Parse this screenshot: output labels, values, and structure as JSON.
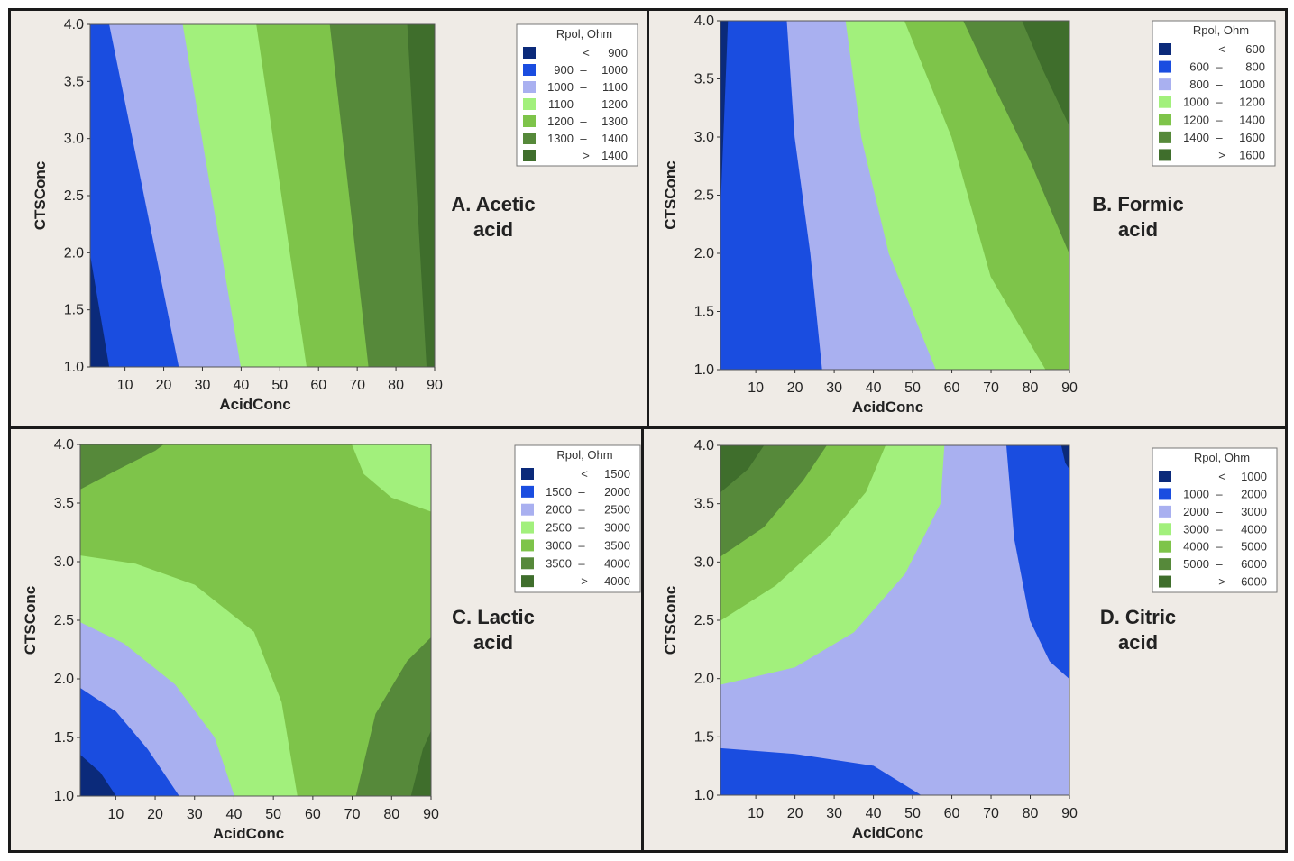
{
  "figure": "Rpol contour plots of CTSConc vs AcidConc",
  "colors": {
    "level1": "#0b2a7a",
    "level2": "#1a4de0",
    "level3": "#a9b0f0",
    "level4": "#a2f07c",
    "level5": "#7ec44a",
    "level6": "#56893a",
    "level7": "#3f6e2c",
    "frame_bg": "#efebe6",
    "border": "#1a1a1a"
  },
  "chart_data": [
    {
      "id": "A",
      "type": "contour",
      "title_line1": "A. Acetic",
      "title_line2": "acid",
      "xlabel": "AcidConc",
      "ylabel": "CTSConc",
      "xlim": [
        1,
        90
      ],
      "ylim": [
        1.0,
        4.0
      ],
      "xticks": [
        "10",
        "20",
        "30",
        "40",
        "50",
        "60",
        "70",
        "80",
        "90"
      ],
      "yticks": [
        "1.0",
        "1.5",
        "2.0",
        "2.5",
        "3.0",
        "3.5",
        "4.0"
      ],
      "legend_title": "Rpol, Ohm",
      "legend": [
        {
          "lo": "<",
          "hi": "900"
        },
        {
          "lo": "900",
          "hi": "1000"
        },
        {
          "lo": "1000",
          "hi": "1100"
        },
        {
          "lo": "1100",
          "hi": "1200"
        },
        {
          "lo": "1200",
          "hi": "1300"
        },
        {
          "lo": "1300",
          "hi": "1400"
        },
        {
          "lo": ">",
          "hi": "1400"
        }
      ],
      "regions": [
        {
          "level": 1,
          "outline": [
            [
              1,
              1
            ],
            [
              1,
              4
            ],
            [
              90,
              4
            ],
            [
              90,
              1
            ]
          ]
        },
        {
          "level": 2,
          "outline": [
            [
              6,
              1
            ],
            [
              1,
              2
            ],
            [
              1,
              4
            ],
            [
              90,
              4
            ],
            [
              90,
              1
            ]
          ]
        },
        {
          "level": 3,
          "outline": [
            [
              24,
              1
            ],
            [
              6,
              4
            ],
            [
              90,
              4
            ],
            [
              90,
              1
            ]
          ]
        },
        {
          "level": 4,
          "outline": [
            [
              40,
              1
            ],
            [
              25,
              4
            ],
            [
              90,
              4
            ],
            [
              90,
              1
            ]
          ]
        },
        {
          "level": 5,
          "outline": [
            [
              57,
              1
            ],
            [
              44,
              4
            ],
            [
              90,
              4
            ],
            [
              90,
              1
            ]
          ]
        },
        {
          "level": 6,
          "outline": [
            [
              73,
              1
            ],
            [
              63,
              4
            ],
            [
              90,
              4
            ],
            [
              90,
              1
            ]
          ]
        },
        {
          "level": 7,
          "outline": [
            [
              88,
              1
            ],
            [
              83,
              4
            ],
            [
              90,
              4
            ],
            [
              90,
              1
            ]
          ]
        }
      ]
    },
    {
      "id": "B",
      "type": "contour",
      "title_line1": "B. Formic",
      "title_line2": "acid",
      "xlabel": "AcidConc",
      "ylabel": "CTSConc",
      "xlim": [
        1,
        90
      ],
      "ylim": [
        1.0,
        4.0
      ],
      "xticks": [
        "10",
        "20",
        "30",
        "40",
        "50",
        "60",
        "70",
        "80",
        "90"
      ],
      "yticks": [
        "1.0",
        "1.5",
        "2.0",
        "2.5",
        "3.0",
        "3.5",
        "4.0"
      ],
      "legend_title": "Rpol, Ohm",
      "legend": [
        {
          "lo": "<",
          "hi": "600"
        },
        {
          "lo": "600",
          "hi": "800"
        },
        {
          "lo": "800",
          "hi": "1000"
        },
        {
          "lo": "1000",
          "hi": "1200"
        },
        {
          "lo": "1200",
          "hi": "1400"
        },
        {
          "lo": "1400",
          "hi": "1600"
        },
        {
          "lo": ">",
          "hi": "1600"
        }
      ],
      "regions": [
        {
          "level": 1,
          "outline": [
            [
              1,
              1
            ],
            [
              1,
              4
            ],
            [
              90,
              4
            ],
            [
              90,
              1
            ]
          ]
        },
        {
          "level": 2,
          "outline": [
            [
              1,
              2.3
            ],
            [
              3,
              4
            ],
            [
              90,
              4
            ],
            [
              90,
              1
            ],
            [
              1,
              1
            ]
          ]
        },
        {
          "level": 3,
          "outline": [
            [
              27,
              1
            ],
            [
              24,
              2
            ],
            [
              20,
              3
            ],
            [
              18,
              4
            ],
            [
              90,
              4
            ],
            [
              90,
              1
            ]
          ]
        },
        {
          "level": 4,
          "outline": [
            [
              56,
              1
            ],
            [
              44,
              2
            ],
            [
              37,
              3
            ],
            [
              33,
              4
            ],
            [
              90,
              4
            ],
            [
              90,
              1
            ]
          ]
        },
        {
          "level": 5,
          "outline": [
            [
              84,
              1
            ],
            [
              70,
              1.8
            ],
            [
              60,
              3
            ],
            [
              48,
              4
            ],
            [
              90,
              4
            ],
            [
              90,
              1
            ]
          ]
        },
        {
          "level": 6,
          "outline": [
            [
              90,
              2
            ],
            [
              80,
              2.8
            ],
            [
              70,
              3.5
            ],
            [
              63,
              4
            ],
            [
              90,
              4
            ]
          ]
        },
        {
          "level": 7,
          "outline": [
            [
              90,
              3.1
            ],
            [
              83,
              3.6
            ],
            [
              78,
              4
            ],
            [
              90,
              4
            ]
          ]
        }
      ]
    },
    {
      "id": "C",
      "type": "contour",
      "title_line1": "C. Lactic",
      "title_line2": "acid",
      "xlabel": "AcidConc",
      "ylabel": "CTSConc",
      "xlim": [
        1,
        90
      ],
      "ylim": [
        1.0,
        4.0
      ],
      "xticks": [
        "10",
        "20",
        "30",
        "40",
        "50",
        "60",
        "70",
        "80",
        "90"
      ],
      "yticks": [
        "1.0",
        "1.5",
        "2.0",
        "2.5",
        "3.0",
        "3.5",
        "4.0"
      ],
      "legend_title": "Rpol, Ohm",
      "legend": [
        {
          "lo": "<",
          "hi": "1500"
        },
        {
          "lo": "1500",
          "hi": "2000"
        },
        {
          "lo": "2000",
          "hi": "2500"
        },
        {
          "lo": "2500",
          "hi": "3000"
        },
        {
          "lo": "3000",
          "hi": "3500"
        },
        {
          "lo": "3500",
          "hi": "4000"
        },
        {
          "lo": ">",
          "hi": "4000"
        }
      ],
      "regions": [
        {
          "level": 5,
          "outline": [
            [
              1,
              1
            ],
            [
              1,
              4
            ],
            [
              90,
              4
            ],
            [
              90,
              1
            ]
          ]
        },
        {
          "level": 6,
          "outline": [
            [
              1,
              3.62
            ],
            [
              10,
              3.78
            ],
            [
              20,
              3.95
            ],
            [
              22,
              4
            ],
            [
              1,
              4
            ]
          ]
        },
        {
          "level": 4,
          "outline": [
            [
              70,
              4
            ],
            [
              73,
              3.75
            ],
            [
              80,
              3.55
            ],
            [
              90,
              3.43
            ],
            [
              90,
              4
            ]
          ]
        },
        {
          "level": 6,
          "outline": [
            [
              71,
              1
            ],
            [
              76,
              1.7
            ],
            [
              84,
              2.15
            ],
            [
              90,
              2.35
            ],
            [
              90,
              1
            ]
          ]
        },
        {
          "level": 7,
          "outline": [
            [
              85,
              1
            ],
            [
              88,
              1.4
            ],
            [
              90,
              1.55
            ],
            [
              90,
              1
            ]
          ]
        },
        {
          "level": 4,
          "outline": [
            [
              1,
              3.05
            ],
            [
              15,
              2.98
            ],
            [
              30,
              2.8
            ],
            [
              45,
              2.4
            ],
            [
              52,
              1.8
            ],
            [
              56,
              1
            ],
            [
              1,
              1
            ]
          ]
        },
        {
          "level": 3,
          "outline": [
            [
              1,
              2.48
            ],
            [
              12,
              2.3
            ],
            [
              25,
              1.95
            ],
            [
              35,
              1.5
            ],
            [
              40,
              1
            ],
            [
              1,
              1
            ]
          ]
        },
        {
          "level": 2,
          "outline": [
            [
              1,
              1.92
            ],
            [
              10,
              1.72
            ],
            [
              18,
              1.4
            ],
            [
              26,
              1
            ],
            [
              1,
              1
            ]
          ]
        },
        {
          "level": 1,
          "outline": [
            [
              1,
              1.35
            ],
            [
              6,
              1.2
            ],
            [
              10,
              1
            ],
            [
              1,
              1
            ]
          ]
        }
      ]
    },
    {
      "id": "D",
      "type": "contour",
      "title_line1": "D. Citric",
      "title_line2": "acid",
      "xlabel": "AcidConc",
      "ylabel": "CTSConc",
      "xlim": [
        1,
        90
      ],
      "ylim": [
        1.0,
        4.0
      ],
      "xticks": [
        "10",
        "20",
        "30",
        "40",
        "50",
        "60",
        "70",
        "80",
        "90"
      ],
      "yticks": [
        "1.0",
        "1.5",
        "2.0",
        "2.5",
        "3.0",
        "3.5",
        "4.0"
      ],
      "legend_title": "Rpol, Ohm",
      "legend": [
        {
          "lo": "<",
          "hi": "1000"
        },
        {
          "lo": "1000",
          "hi": "2000"
        },
        {
          "lo": "2000",
          "hi": "3000"
        },
        {
          "lo": "3000",
          "hi": "4000"
        },
        {
          "lo": "4000",
          "hi": "5000"
        },
        {
          "lo": "5000",
          "hi": "6000"
        },
        {
          "lo": ">",
          "hi": "6000"
        }
      ],
      "regions": [
        {
          "level": 3,
          "outline": [
            [
              1,
              1
            ],
            [
              1,
              4
            ],
            [
              90,
              4
            ],
            [
              90,
              1
            ]
          ]
        },
        {
          "level": 2,
          "outline": [
            [
              1,
              1.4
            ],
            [
              20,
              1.35
            ],
            [
              40,
              1.25
            ],
            [
              52,
              1
            ],
            [
              1,
              1
            ]
          ]
        },
        {
          "level": 2,
          "outline": [
            [
              74,
              4
            ],
            [
              76,
              3.2
            ],
            [
              80,
              2.5
            ],
            [
              85,
              2.15
            ],
            [
              90,
              2
            ],
            [
              90,
              4
            ]
          ]
        },
        {
          "level": 1,
          "outline": [
            [
              88,
              4
            ],
            [
              89,
              3.85
            ],
            [
              90,
              3.8
            ],
            [
              90,
              4
            ]
          ]
        },
        {
          "level": 4,
          "outline": [
            [
              1,
              1.95
            ],
            [
              20,
              2.1
            ],
            [
              35,
              2.4
            ],
            [
              48,
              2.9
            ],
            [
              57,
              3.5
            ],
            [
              58,
              4
            ],
            [
              1,
              4
            ]
          ]
        },
        {
          "level": 5,
          "outline": [
            [
              1,
              2.5
            ],
            [
              15,
              2.8
            ],
            [
              28,
              3.2
            ],
            [
              38,
              3.6
            ],
            [
              43,
              4
            ],
            [
              1,
              4
            ]
          ]
        },
        {
          "level": 6,
          "outline": [
            [
              1,
              3.05
            ],
            [
              12,
              3.3
            ],
            [
              22,
              3.7
            ],
            [
              28,
              4
            ],
            [
              1,
              4
            ]
          ]
        },
        {
          "level": 7,
          "outline": [
            [
              1,
              3.6
            ],
            [
              8,
              3.8
            ],
            [
              12,
              4
            ],
            [
              1,
              4
            ]
          ]
        }
      ]
    }
  ]
}
